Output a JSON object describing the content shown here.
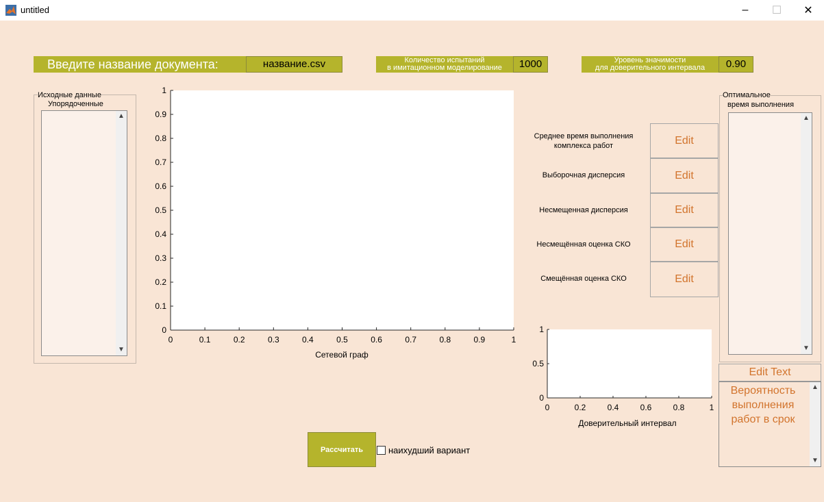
{
  "window": {
    "title": "untitled",
    "minimize": "–",
    "maximize": "☐",
    "close": "✕"
  },
  "file_input": {
    "label": "Введите название документа:",
    "value": "название.csv"
  },
  "trials": {
    "label_line1": "Количество испытаний",
    "label_line2": "в имитационном моделирование",
    "value": "1000"
  },
  "significance": {
    "label_line1": "Уровень значимости",
    "label_line2": "для доверительного интервала",
    "value": "0.90"
  },
  "source_data": {
    "title_line1": "Исходные данные",
    "title_line2": "Упорядоченные"
  },
  "main_plot": {
    "xlabel": "Сетевой граф",
    "xticks": [
      "0",
      "0.1",
      "0.2",
      "0.3",
      "0.4",
      "0.5",
      "0.6",
      "0.7",
      "0.8",
      "0.9",
      "1"
    ],
    "yticks": [
      "0",
      "0.1",
      "0.2",
      "0.3",
      "0.4",
      "0.5",
      "0.6",
      "0.7",
      "0.8",
      "0.9",
      "1"
    ]
  },
  "stats": [
    {
      "label_line1": "Среднее время выполнения",
      "label_line2": "комплекса работ",
      "value": "Edit"
    },
    {
      "label_line1": "Выборочная дисперсия",
      "label_line2": "",
      "value": "Edit"
    },
    {
      "label_line1": "Несмещенная дисперсия",
      "label_line2": "",
      "value": "Edit"
    },
    {
      "label_line1": "Несмещённая оценка СКО",
      "label_line2": "",
      "value": "Edit"
    },
    {
      "label_line1": "Смещённая оценка СКО",
      "label_line2": "",
      "value": "Edit"
    }
  ],
  "ci_plot": {
    "xlabel": "Доверительный интервал",
    "xticks": [
      "0",
      "0.2",
      "0.4",
      "0.6",
      "0.8",
      "1"
    ],
    "yticks": [
      "0",
      "0.5",
      "1"
    ]
  },
  "optimal": {
    "title_line1": "Оптимальное",
    "title_line2": "время выполнения"
  },
  "probability": {
    "edit_text": "Edit Text",
    "line1": "Вероятность",
    "line2": "выполнения",
    "line3": "работ в срок"
  },
  "calculate_button": "Рассчитать",
  "worst_case": {
    "label": "наихудший вариант",
    "checked": false
  },
  "colors": {
    "olive": "#b5b42c",
    "background": "#f9e5d5",
    "accent_text": "#d2742d"
  }
}
